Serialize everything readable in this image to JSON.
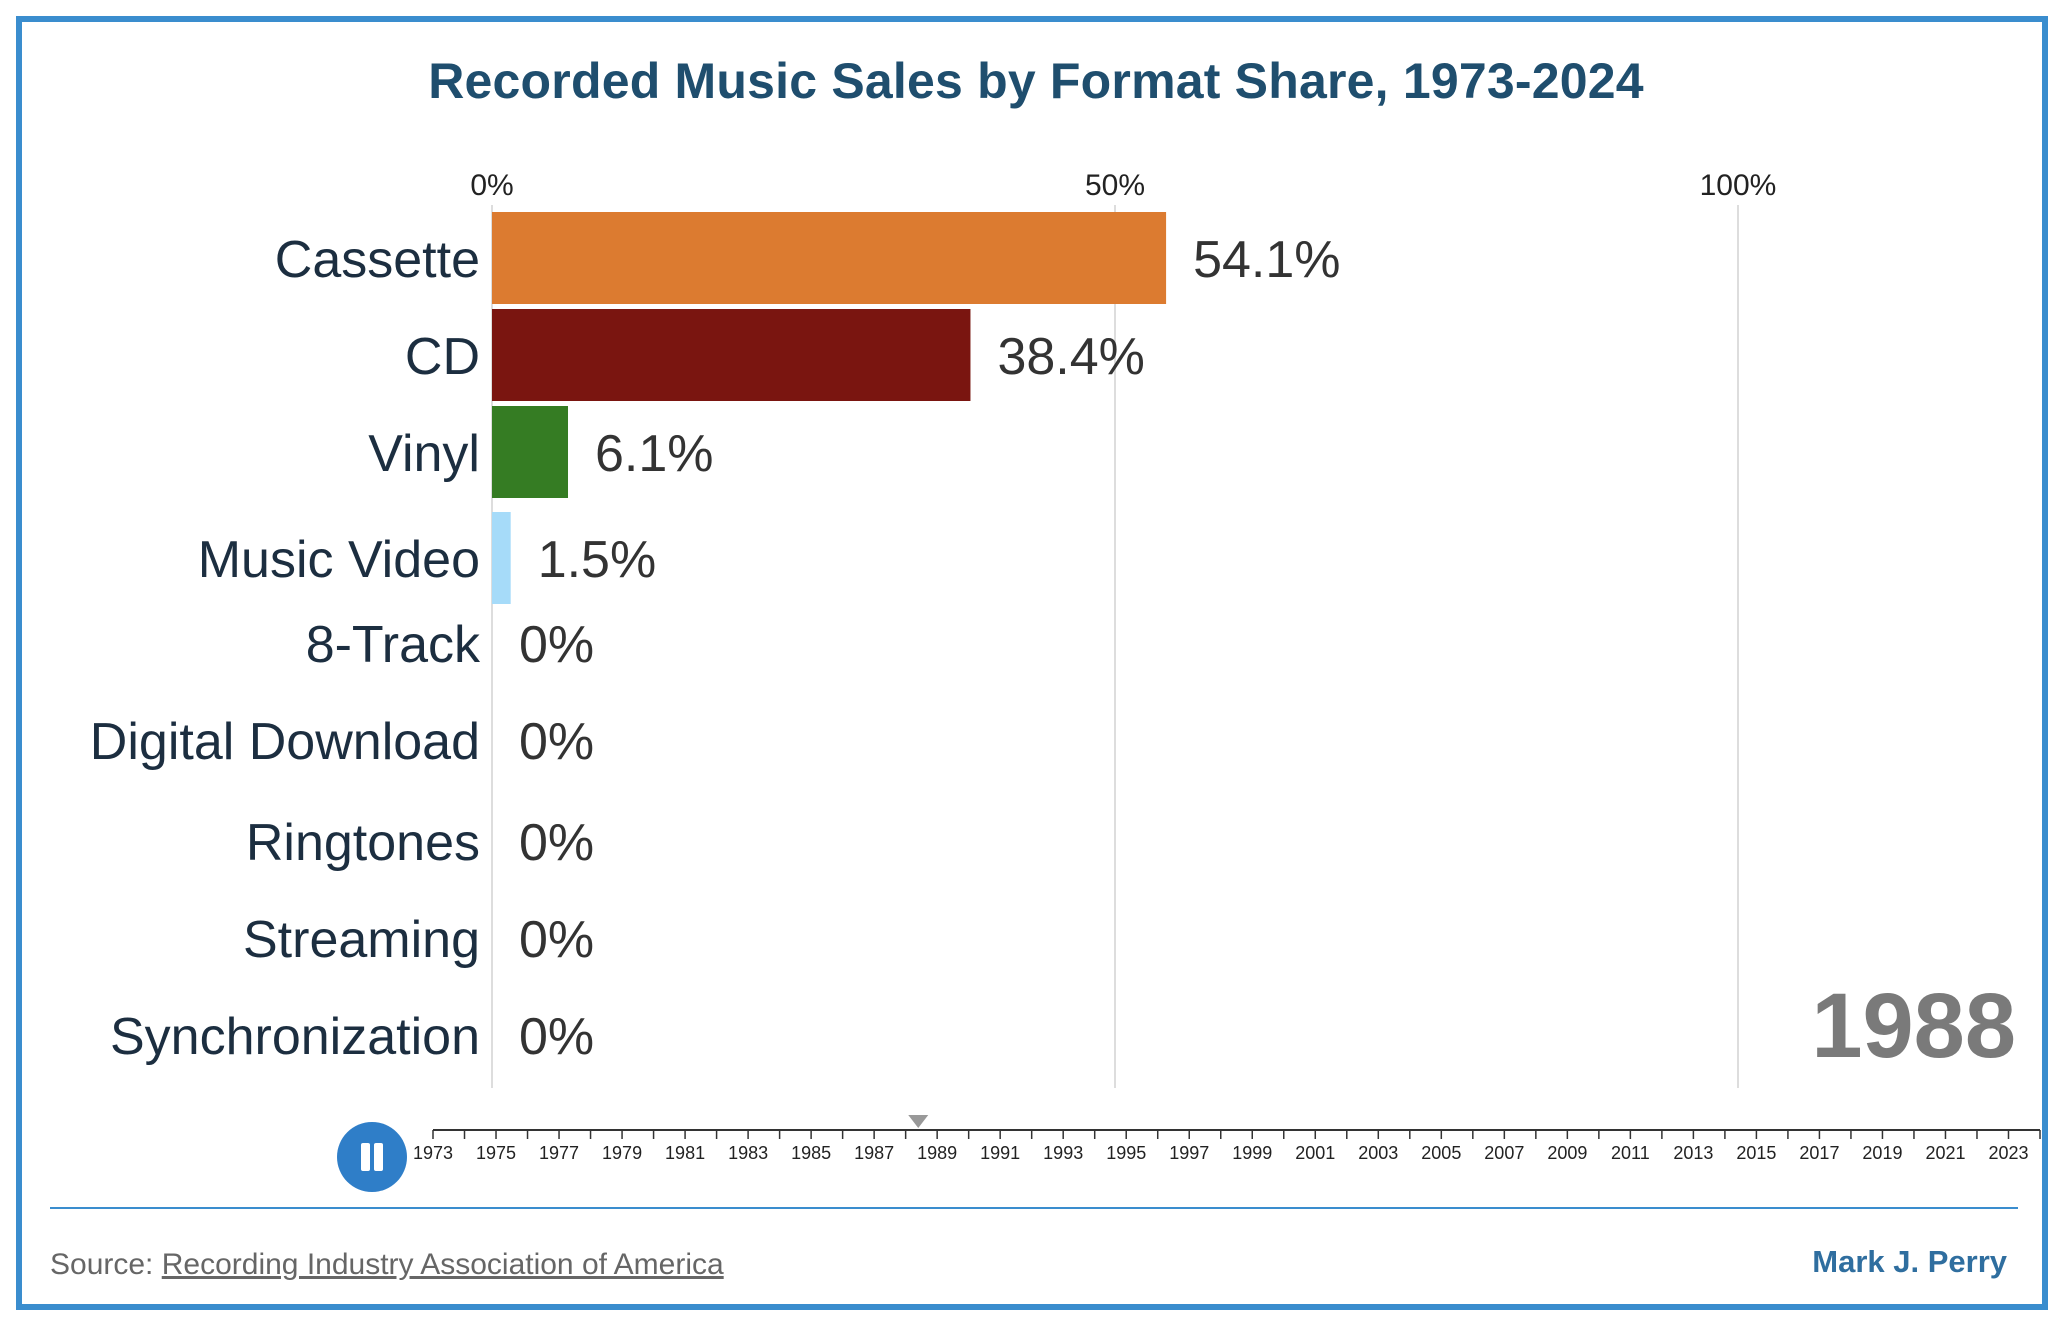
{
  "chart_data": {
    "type": "bar",
    "title": "Recorded Music Sales by Format Share, 1973-2024",
    "current_year": "1988",
    "x_ticks": [
      "0%",
      "50%",
      "100%"
    ],
    "xlim": [
      0,
      100
    ],
    "categories": [
      "Cassette",
      "CD",
      "Vinyl",
      "Music Video",
      "8-Track",
      "Digital Download",
      "Ringtones",
      "Streaming",
      "Synchronization"
    ],
    "values": [
      54.1,
      38.4,
      6.1,
      1.5,
      0,
      0,
      0,
      0,
      0
    ],
    "value_labels": [
      "54.1%",
      "38.4%",
      "6.1%",
      "1.5%",
      "0%",
      "0%",
      "0%",
      "0%",
      "0%"
    ],
    "colors": [
      "#dc7b30",
      "#7a1510",
      "#357c23",
      "#a6dbf9",
      "#999999",
      "#999999",
      "#999999",
      "#999999",
      "#999999"
    ],
    "grid": true
  },
  "timeline": {
    "years": [
      "1973",
      "1975",
      "1977",
      "1979",
      "1981",
      "1983",
      "1985",
      "1987",
      "1989",
      "1991",
      "1993",
      "1995",
      "1997",
      "1999",
      "2001",
      "2003",
      "2005",
      "2007",
      "2009",
      "2011",
      "2013",
      "2015",
      "2017",
      "2019",
      "2021",
      "2023"
    ],
    "first_year": 1973,
    "last_year": 2024,
    "current_year": 1988
  },
  "footer": {
    "source_prefix": "Source: ",
    "source_link": "Recording Industry Association of America",
    "author": "Mark J. Perry"
  },
  "colors": {
    "frame": "#3a8dce",
    "title": "#1f4e6e",
    "play_button": "#2f7ec8"
  }
}
